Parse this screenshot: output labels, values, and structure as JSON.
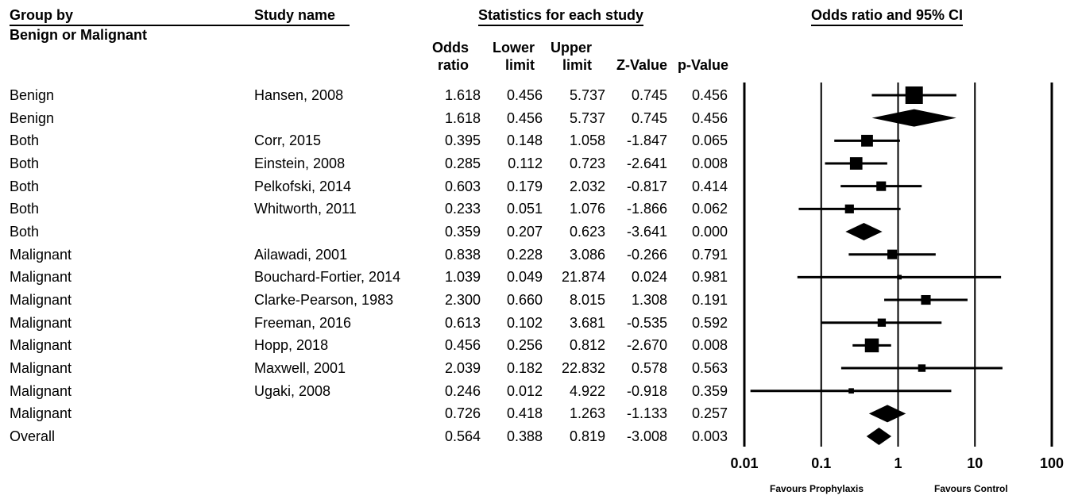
{
  "headers": {
    "group_by": "Group by",
    "group_sub": "Benign or Malignant",
    "study_name": "Study name",
    "stats": "Statistics for each study",
    "plot": "Odds ratio and 95% CI",
    "odds_line1": "Odds",
    "odds_line2": "ratio",
    "lower_line1": "Lower",
    "lower_line2": "limit",
    "upper_line1": "Upper",
    "upper_line2": "limit",
    "z": "Z-Value",
    "p": "p-Value"
  },
  "rows": [
    {
      "group": "Benign",
      "study": "Hansen, 2008",
      "or": "1.618",
      "lower": "0.456",
      "upper": "5.737",
      "z": "0.745",
      "p": "0.456"
    },
    {
      "group": "Benign",
      "study": "",
      "or": "1.618",
      "lower": "0.456",
      "upper": "5.737",
      "z": "0.745",
      "p": "0.456"
    },
    {
      "group": "Both",
      "study": "Corr, 2015",
      "or": "0.395",
      "lower": "0.148",
      "upper": "1.058",
      "z": "-1.847",
      "p": "0.065"
    },
    {
      "group": "Both",
      "study": "Einstein, 2008",
      "or": "0.285",
      "lower": "0.112",
      "upper": "0.723",
      "z": "-2.641",
      "p": "0.008"
    },
    {
      "group": "Both",
      "study": "Pelkofski, 2014",
      "or": "0.603",
      "lower": "0.179",
      "upper": "2.032",
      "z": "-0.817",
      "p": "0.414"
    },
    {
      "group": "Both",
      "study": "Whitworth, 2011",
      "or": "0.233",
      "lower": "0.051",
      "upper": "1.076",
      "z": "-1.866",
      "p": "0.062"
    },
    {
      "group": "Both",
      "study": "",
      "or": "0.359",
      "lower": "0.207",
      "upper": "0.623",
      "z": "-3.641",
      "p": "0.000"
    },
    {
      "group": "Malignant",
      "study": "Ailawadi, 2001",
      "or": "0.838",
      "lower": "0.228",
      "upper": "3.086",
      "z": "-0.266",
      "p": "0.791"
    },
    {
      "group": "Malignant",
      "study": "Bouchard-Fortier, 2014",
      "or": "1.039",
      "lower": "0.049",
      "upper": "21.874",
      "z": "0.024",
      "p": "0.981"
    },
    {
      "group": "Malignant",
      "study": "Clarke-Pearson, 1983",
      "or": "2.300",
      "lower": "0.660",
      "upper": "8.015",
      "z": "1.308",
      "p": "0.191"
    },
    {
      "group": "Malignant",
      "study": "Freeman, 2016",
      "or": "0.613",
      "lower": "0.102",
      "upper": "3.681",
      "z": "-0.535",
      "p": "0.592"
    },
    {
      "group": "Malignant",
      "study": "Hopp, 2018",
      "or": "0.456",
      "lower": "0.256",
      "upper": "0.812",
      "z": "-2.670",
      "p": "0.008"
    },
    {
      "group": "Malignant",
      "study": "Maxwell, 2001",
      "or": "2.039",
      "lower": "0.182",
      "upper": "22.832",
      "z": "0.578",
      "p": "0.563"
    },
    {
      "group": "Malignant",
      "study": "Ugaki, 2008",
      "or": "0.246",
      "lower": "0.012",
      "upper": "4.922",
      "z": "-0.918",
      "p": "0.359"
    },
    {
      "group": "Malignant",
      "study": "",
      "or": "0.726",
      "lower": "0.418",
      "upper": "1.263",
      "z": "-1.133",
      "p": "0.257"
    },
    {
      "group": "Overall",
      "study": "",
      "or": "0.564",
      "lower": "0.388",
      "upper": "0.819",
      "z": "-3.008",
      "p": "0.003"
    }
  ],
  "chart_data": {
    "type": "forest",
    "x_scale": "log",
    "xlim": [
      0.01,
      100
    ],
    "reference_line": 1,
    "x_ticks": [
      "0.01",
      "0.1",
      "1",
      "10",
      "100"
    ],
    "favours_left": "Favours Prophylaxis",
    "favours_right": "Favours Control",
    "points": [
      {
        "or": 1.618,
        "lower": 0.456,
        "upper": 5.737,
        "kind": "study",
        "weight": 1.0
      },
      {
        "or": 1.618,
        "lower": 0.456,
        "upper": 5.737,
        "kind": "summary"
      },
      {
        "or": 0.395,
        "lower": 0.148,
        "upper": 1.058,
        "kind": "study",
        "weight": 0.6
      },
      {
        "or": 0.285,
        "lower": 0.112,
        "upper": 0.723,
        "kind": "study",
        "weight": 0.65
      },
      {
        "or": 0.603,
        "lower": 0.179,
        "upper": 2.032,
        "kind": "study",
        "weight": 0.45
      },
      {
        "or": 0.233,
        "lower": 0.051,
        "upper": 1.076,
        "kind": "study",
        "weight": 0.4
      },
      {
        "or": 0.359,
        "lower": 0.207,
        "upper": 0.623,
        "kind": "summary"
      },
      {
        "or": 0.838,
        "lower": 0.228,
        "upper": 3.086,
        "kind": "study",
        "weight": 0.45
      },
      {
        "or": 1.039,
        "lower": 0.049,
        "upper": 21.874,
        "kind": "study",
        "weight": 0.1
      },
      {
        "or": 2.3,
        "lower": 0.66,
        "upper": 8.015,
        "kind": "study",
        "weight": 0.45
      },
      {
        "or": 0.613,
        "lower": 0.102,
        "upper": 3.681,
        "kind": "study",
        "weight": 0.35
      },
      {
        "or": 0.456,
        "lower": 0.256,
        "upper": 0.812,
        "kind": "study",
        "weight": 0.75
      },
      {
        "or": 2.039,
        "lower": 0.182,
        "upper": 22.832,
        "kind": "study",
        "weight": 0.3
      },
      {
        "or": 0.246,
        "lower": 0.012,
        "upper": 4.922,
        "kind": "study",
        "weight": 0.15
      },
      {
        "or": 0.726,
        "lower": 0.418,
        "upper": 1.263,
        "kind": "summary"
      },
      {
        "or": 0.564,
        "lower": 0.388,
        "upper": 0.819,
        "kind": "summary"
      }
    ]
  }
}
